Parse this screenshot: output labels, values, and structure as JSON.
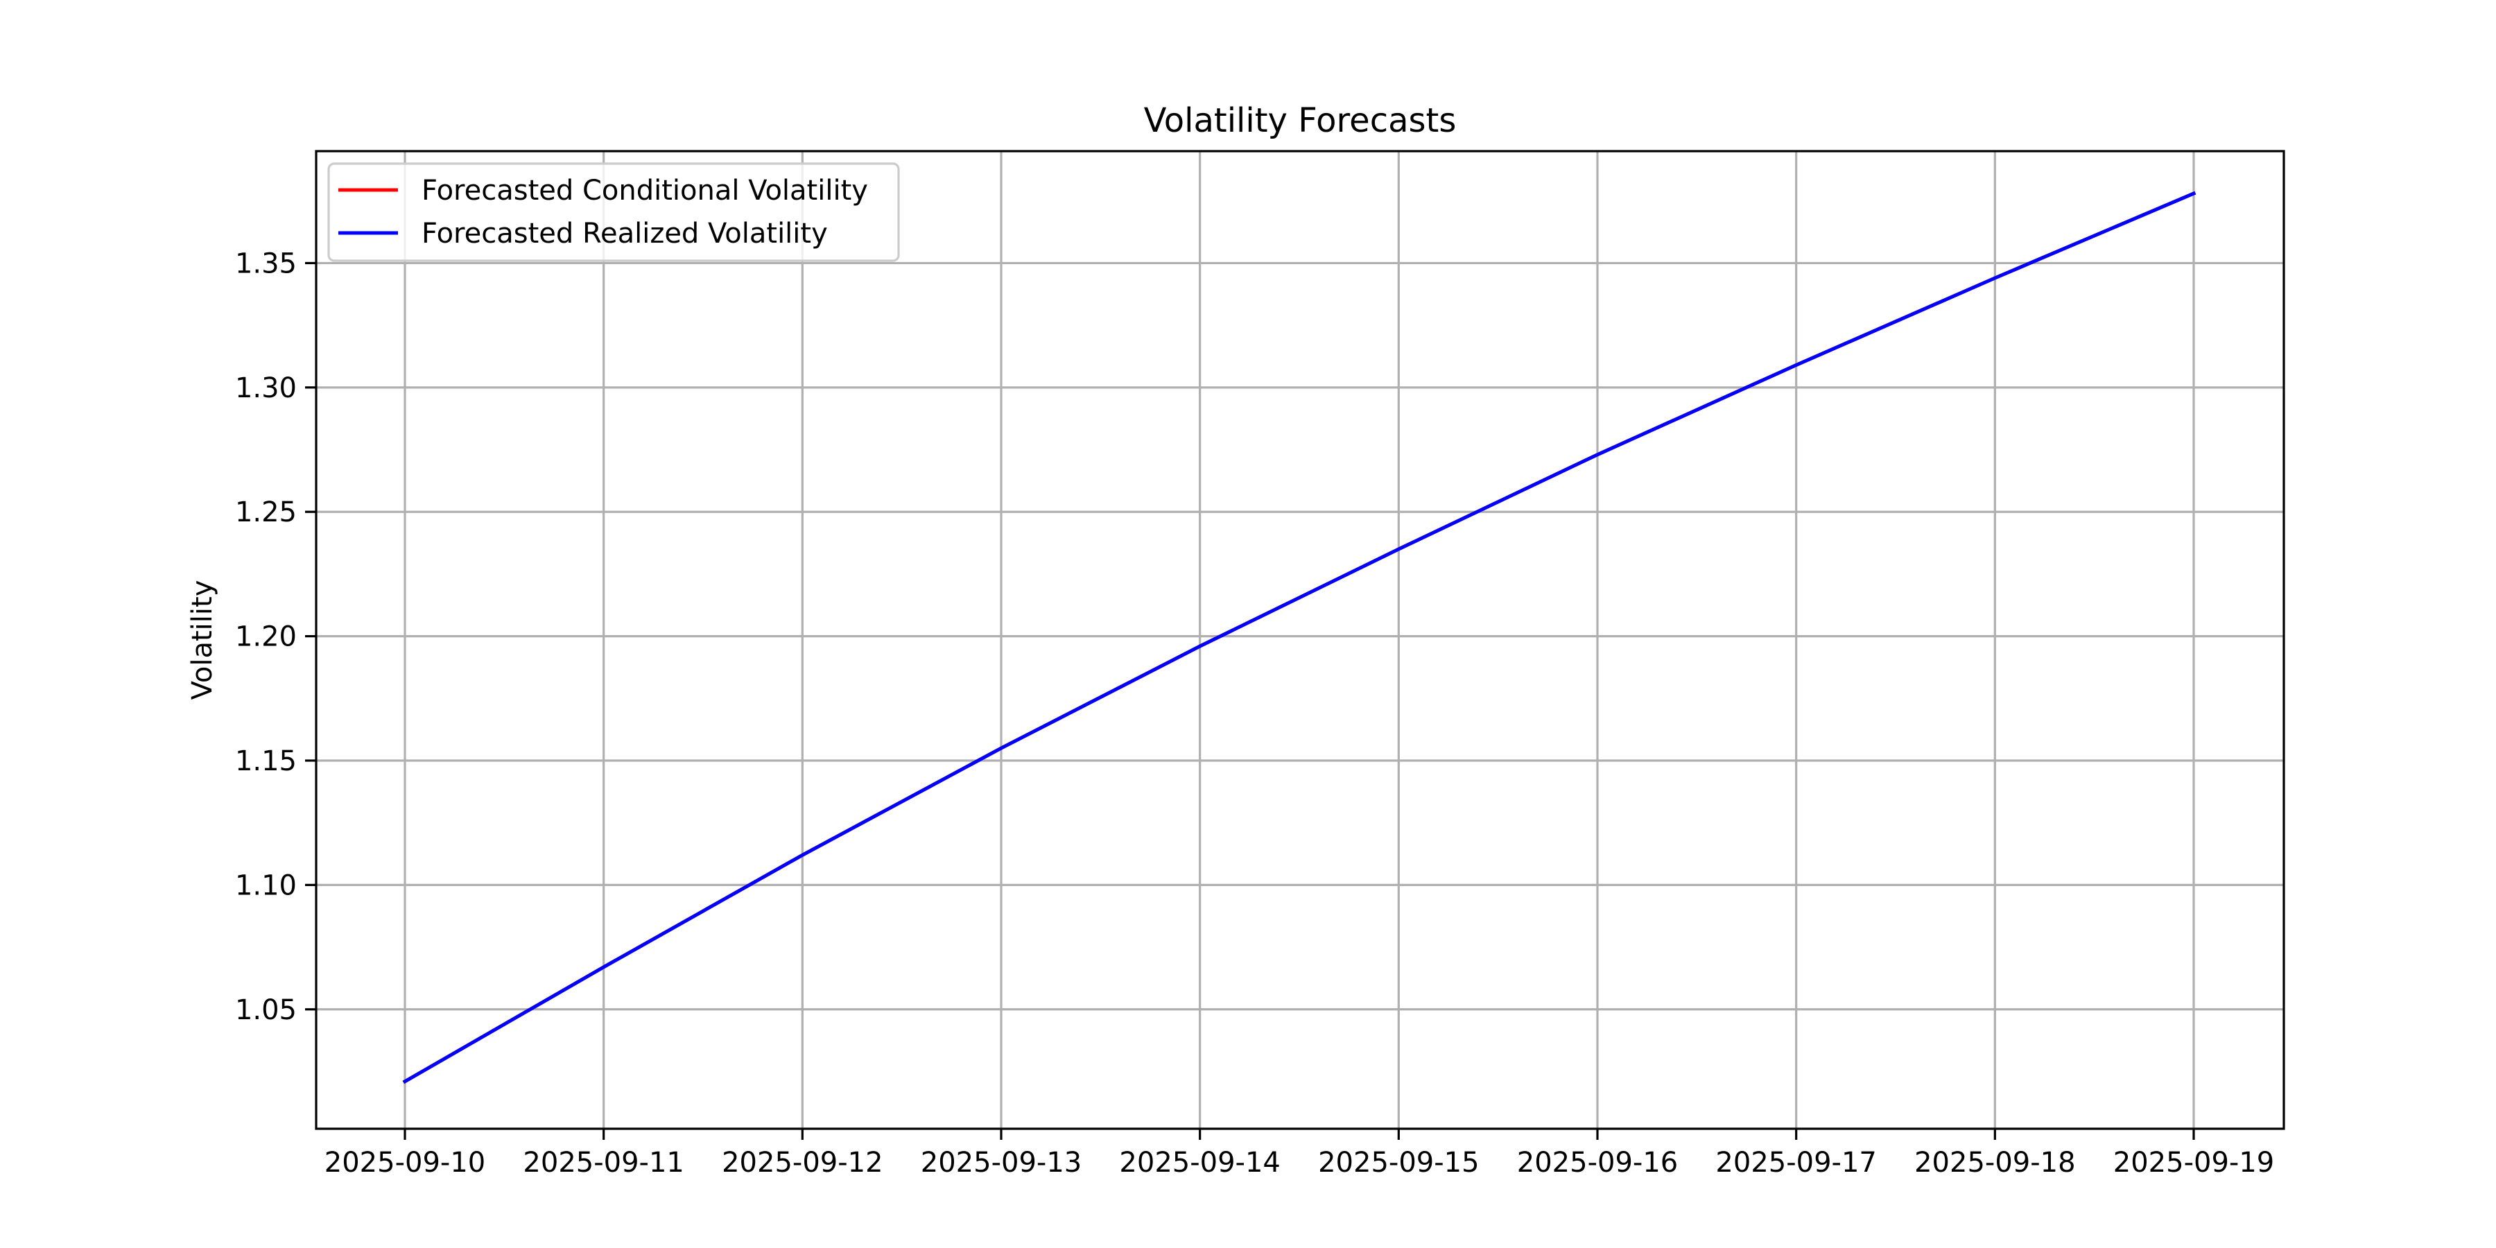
{
  "chart_data": {
    "type": "line",
    "title": "Volatility Forecasts",
    "xlabel": "",
    "ylabel": "Volatility",
    "x": [
      "2025-09-10",
      "2025-09-11",
      "2025-09-12",
      "2025-09-13",
      "2025-09-14",
      "2025-09-15",
      "2025-09-16",
      "2025-09-17",
      "2025-09-18",
      "2025-09-19"
    ],
    "x_tick_labels": [
      "2025-09-10",
      "2025-09-11",
      "2025-09-12",
      "2025-09-13",
      "2025-09-14",
      "2025-09-15",
      "2025-09-16",
      "2025-09-17",
      "2025-09-18",
      "2025-09-19"
    ],
    "y_ticks": [
      1.05,
      1.1,
      1.15,
      1.2,
      1.25,
      1.3,
      1.35
    ],
    "y_tick_labels": [
      "1.05",
      "1.10",
      "1.15",
      "1.20",
      "1.25",
      "1.30",
      "1.35"
    ],
    "ylim": [
      1.002,
      1.395
    ],
    "grid": true,
    "legend_position": "top-left",
    "series": [
      {
        "name": "Forecasted Conditional Volatility",
        "color": "#ff0000",
        "values": [
          1.021,
          1.067,
          1.112,
          1.155,
          1.196,
          1.235,
          1.273,
          1.309,
          1.344,
          1.378
        ]
      },
      {
        "name": "Forecasted Realized Volatility",
        "color": "#0000ff",
        "values": [
          1.021,
          1.067,
          1.112,
          1.155,
          1.196,
          1.235,
          1.273,
          1.309,
          1.344,
          1.378
        ]
      }
    ]
  }
}
